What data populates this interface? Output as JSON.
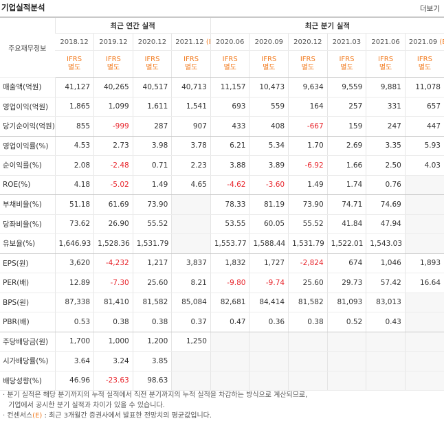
{
  "header": {
    "title": "기업실적분석",
    "more": "더보기"
  },
  "table": {
    "corner": "주요재무정보",
    "annual_group": "최근 연간 실적",
    "quarter_group": "최근 분기 실적",
    "periods": [
      {
        "date": "2018.12"
      },
      {
        "date": "2019.12"
      },
      {
        "date": "2020.12"
      },
      {
        "date": "2021.12",
        "est": "(E)"
      },
      {
        "date": "2020.06"
      },
      {
        "date": "2020.09"
      },
      {
        "date": "2020.12"
      },
      {
        "date": "2021.03"
      },
      {
        "date": "2021.06"
      },
      {
        "date": "2021.09",
        "est": "(E)"
      }
    ],
    "standards": [
      [
        "IFRS",
        "별도"
      ],
      [
        "IFRS",
        "별도"
      ],
      [
        "IFRS",
        "별도"
      ],
      [
        "IFRS",
        "별도"
      ],
      [
        "IFRS",
        "별도"
      ],
      [
        "IFRS",
        "별도"
      ],
      [
        "IFRS",
        "별도"
      ],
      [
        "IFRS",
        "별도"
      ],
      [
        "IFRS",
        "별도"
      ],
      [
        "IFRS",
        "별도"
      ]
    ],
    "rows": [
      {
        "name": "매출액(억원)",
        "cells": [
          "41,127",
          "40,265",
          "40,517",
          "40,713",
          "11,157",
          "10,473",
          "9,634",
          "9,559",
          "9,881",
          "11,078"
        ]
      },
      {
        "name": "영업이익(억원)",
        "cells": [
          "1,865",
          "1,099",
          "1,611",
          "1,541",
          "693",
          "559",
          "164",
          "257",
          "331",
          "657"
        ]
      },
      {
        "name": "당기순이익(억원)",
        "cells": [
          "855",
          "-999",
          "287",
          "907",
          "433",
          "408",
          "-667",
          "159",
          "247",
          "447"
        ]
      },
      {
        "name": "영업이익률(%)",
        "cells": [
          "4.53",
          "2.73",
          "3.98",
          "3.78",
          "6.21",
          "5.34",
          "1.70",
          "2.69",
          "3.35",
          "5.93"
        ]
      },
      {
        "name": "순이익률(%)",
        "cells": [
          "2.08",
          "-2.48",
          "0.71",
          "2.23",
          "3.88",
          "3.89",
          "-6.92",
          "1.66",
          "2.50",
          "4.03"
        ]
      },
      {
        "name": "ROE(%)",
        "cells": [
          "4.18",
          "-5.02",
          "1.49",
          "4.65",
          "-4.62",
          "-3.60",
          "1.49",
          "1.74",
          "0.76",
          null
        ]
      },
      {
        "name": "부채비율(%)",
        "cells": [
          "51.18",
          "61.69",
          "73.90",
          null,
          "78.33",
          "81.19",
          "73.90",
          "74.71",
          "74.69",
          null
        ]
      },
      {
        "name": "당좌비율(%)",
        "cells": [
          "73.62",
          "26.90",
          "55.52",
          null,
          "53.55",
          "60.05",
          "55.52",
          "41.84",
          "47.94",
          null
        ]
      },
      {
        "name": "유보율(%)",
        "cells": [
          "1,646.93",
          "1,528.36",
          "1,531.79",
          null,
          "1,553.77",
          "1,588.44",
          "1,531.79",
          "1,522.01",
          "1,543.03",
          null
        ]
      },
      {
        "name": "EPS(원)",
        "cells": [
          "3,620",
          "-4,232",
          "1,217",
          "3,837",
          "1,832",
          "1,727",
          "-2,824",
          "674",
          "1,046",
          "1,893"
        ]
      },
      {
        "name": "PER(배)",
        "cells": [
          "12.89",
          "-7.30",
          "25.60",
          "8.21",
          "-9.80",
          "-9.74",
          "25.60",
          "29.73",
          "57.42",
          "16.64"
        ]
      },
      {
        "name": "BPS(원)",
        "cells": [
          "87,338",
          "81,410",
          "81,582",
          "85,084",
          "82,681",
          "84,414",
          "81,582",
          "81,093",
          "83,013",
          null
        ]
      },
      {
        "name": "PBR(배)",
        "cells": [
          "0.53",
          "0.38",
          "0.38",
          "0.37",
          "0.47",
          "0.36",
          "0.38",
          "0.52",
          "0.43",
          null
        ]
      },
      {
        "name": "주당배당금(원)",
        "cells": [
          "1,700",
          "1,000",
          "1,200",
          "1,250",
          null,
          null,
          null,
          null,
          null,
          null
        ]
      },
      {
        "name": "시가배당률(%)",
        "cells": [
          "3.64",
          "3.24",
          "3.85",
          null,
          null,
          null,
          null,
          null,
          null,
          null
        ]
      },
      {
        "name": "배당성향(%)",
        "cells": [
          "46.96",
          "-23.63",
          "98.63",
          null,
          null,
          null,
          null,
          null,
          null,
          null
        ]
      }
    ]
  },
  "notes": [
    {
      "text": "· 분기 실적은 해당 분기까지의 누적 실적에서 직전 분기까지의 누적 실적을 차감하는 방식으로 계산되므로,",
      "cont": "기업에서 공시한 분기 실적과 차이가 있을 수 있습니다."
    },
    {
      "lead": "· 컨센서스",
      "est": "(E)",
      "text": " : 최근 3개월간 증권사에서 발표한 전망치의 평균값입니다."
    }
  ]
}
